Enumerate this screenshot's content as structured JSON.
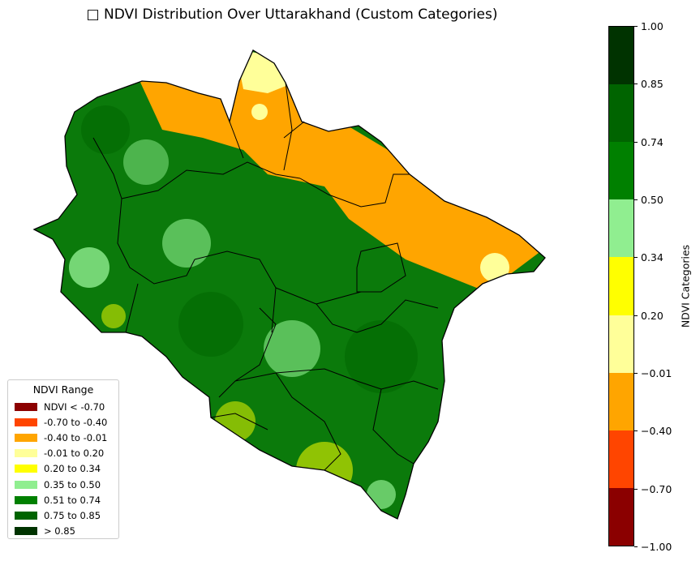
{
  "title": "□ NDVI Distribution Over Uttarakhand (Custom Categories)",
  "legend": {
    "title": "NDVI Range",
    "items": [
      {
        "label": "NDVI < -0.70",
        "color": "#8b0000"
      },
      {
        "label": "-0.70 to -0.40",
        "color": "#ff4500"
      },
      {
        "label": "-0.40 to -0.01",
        "color": "#ffa500"
      },
      {
        "label": "-0.01 to 0.20",
        "color": "#ffff99"
      },
      {
        "label": "0.20 to 0.34",
        "color": "#ffff00"
      },
      {
        "label": "0.35 to 0.50",
        "color": "#90ee90"
      },
      {
        "label": "0.51 to 0.74",
        "color": "#008000"
      },
      {
        "label": "0.75 to 0.85",
        "color": "#006400"
      },
      {
        "label": "> 0.85",
        "color": "#003300"
      }
    ]
  },
  "colorbar": {
    "label": "NDVI Categories",
    "ticks": [
      "1.00",
      "0.85",
      "0.74",
      "0.50",
      "0.34",
      "0.20",
      "−0.01",
      "−0.40",
      "−0.70",
      "−1.00"
    ],
    "segments_bottom_to_top": [
      "#8b0000",
      "#ff4500",
      "#ffa500",
      "#ffff99",
      "#ffff00",
      "#90ee90",
      "#008000",
      "#006400",
      "#003300"
    ]
  }
}
